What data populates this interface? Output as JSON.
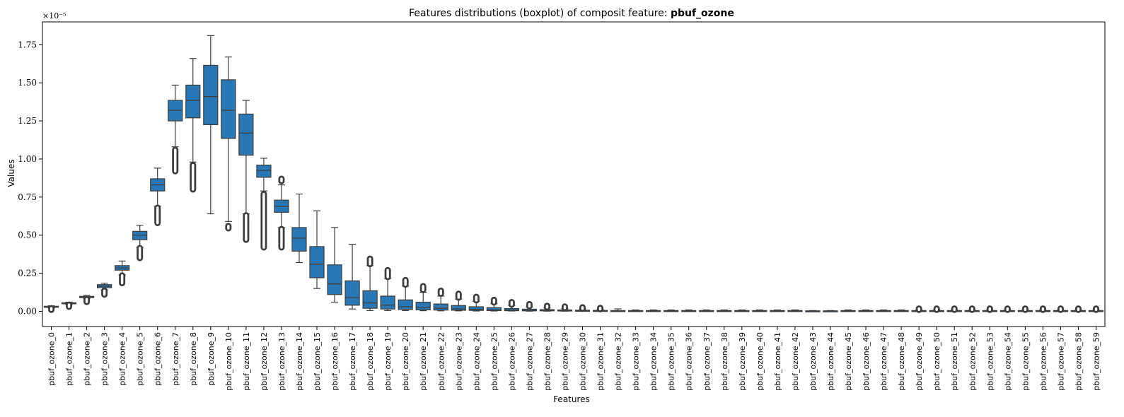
{
  "chart_data": {
    "type": "boxplot",
    "title_prefix": "Features distributions (boxplot) of composit feature: ",
    "title_bold": "pbuf_ozone",
    "xlabel": "Features",
    "ylabel": "Values",
    "y_scale_label": "×10⁻⁵",
    "ylim": [
      -0.1,
      1.9
    ],
    "yticks": [
      0.0,
      0.25,
      0.5,
      0.75,
      1.0,
      1.25,
      1.5,
      1.75
    ],
    "ytick_labels": [
      "0.00",
      "0.25",
      "0.50",
      "0.75",
      "1.00",
      "1.25",
      "1.50",
      "1.75"
    ],
    "box_color": "#2978b5",
    "line_color": "#3d3d3d",
    "categories": [
      "pbuf_ozone_0",
      "pbuf_ozone_1",
      "pbuf_ozone_2",
      "pbuf_ozone_3",
      "pbuf_ozone_4",
      "pbuf_ozone_5",
      "pbuf_ozone_6",
      "pbuf_ozone_7",
      "pbuf_ozone_8",
      "pbuf_ozone_9",
      "pbuf_ozone_10",
      "pbuf_ozone_11",
      "pbuf_ozone_12",
      "pbuf_ozone_13",
      "pbuf_ozone_14",
      "pbuf_ozone_15",
      "pbuf_ozone_16",
      "pbuf_ozone_17",
      "pbuf_ozone_18",
      "pbuf_ozone_19",
      "pbuf_ozone_20",
      "pbuf_ozone_21",
      "pbuf_ozone_22",
      "pbuf_ozone_23",
      "pbuf_ozone_24",
      "pbuf_ozone_25",
      "pbuf_ozone_26",
      "pbuf_ozone_27",
      "pbuf_ozone_28",
      "pbuf_ozone_29",
      "pbuf_ozone_30",
      "pbuf_ozone_31",
      "pbuf_ozone_32",
      "pbuf_ozone_33",
      "pbuf_ozone_34",
      "pbuf_ozone_35",
      "pbuf_ozone_36",
      "pbuf_ozone_37",
      "pbuf_ozone_38",
      "pbuf_ozone_39",
      "pbuf_ozone_40",
      "pbuf_ozone_41",
      "pbuf_ozone_42",
      "pbuf_ozone_43",
      "pbuf_ozone_44",
      "pbuf_ozone_45",
      "pbuf_ozone_46",
      "pbuf_ozone_47",
      "pbuf_ozone_48",
      "pbuf_ozone_49",
      "pbuf_ozone_50",
      "pbuf_ozone_51",
      "pbuf_ozone_52",
      "pbuf_ozone_53",
      "pbuf_ozone_54",
      "pbuf_ozone_55",
      "pbuf_ozone_56",
      "pbuf_ozone_57",
      "pbuf_ozone_58",
      "pbuf_ozone_59"
    ],
    "boxes": [
      {
        "wlo": 0.022,
        "q1": 0.027,
        "med": 0.03,
        "q3": 0.033,
        "whi": 0.036,
        "flo": [
          0.01,
          0.02
        ],
        "fhi": []
      },
      {
        "wlo": 0.045,
        "q1": 0.05,
        "med": 0.053,
        "q3": 0.056,
        "whi": 0.06,
        "flo": [
          0.03,
          0.043
        ],
        "fhi": []
      },
      {
        "wlo": 0.083,
        "q1": 0.09,
        "med": 0.094,
        "q3": 0.098,
        "whi": 0.104,
        "flo": [
          0.062,
          0.08
        ],
        "fhi": []
      },
      {
        "wlo": 0.14,
        "q1": 0.155,
        "med": 0.165,
        "q3": 0.175,
        "whi": 0.185,
        "flo": [
          0.11,
          0.135
        ],
        "fhi": []
      },
      {
        "wlo": 0.24,
        "q1": 0.27,
        "med": 0.285,
        "q3": 0.3,
        "whi": 0.33,
        "flo": [
          0.185,
          0.235
        ],
        "fhi": []
      },
      {
        "wlo": 0.42,
        "q1": 0.47,
        "med": 0.5,
        "q3": 0.525,
        "whi": 0.565,
        "flo": [
          0.35,
          0.415
        ],
        "fhi": []
      },
      {
        "wlo": 0.69,
        "q1": 0.79,
        "med": 0.83,
        "q3": 0.87,
        "whi": 0.94,
        "flo": [
          0.58,
          0.68
        ],
        "fhi": []
      },
      {
        "wlo": 1.08,
        "q1": 1.25,
        "med": 1.32,
        "q3": 1.385,
        "whi": 1.485,
        "flo": [
          0.92,
          1.06
        ],
        "fhi": []
      },
      {
        "wlo": 0.98,
        "q1": 1.27,
        "med": 1.385,
        "q3": 1.485,
        "whi": 1.66,
        "flo": [
          0.8,
          0.96
        ],
        "fhi": []
      },
      {
        "wlo": 0.64,
        "q1": 1.225,
        "med": 1.41,
        "q3": 1.615,
        "whi": 1.81,
        "flo": [],
        "fhi": []
      },
      {
        "wlo": 0.59,
        "q1": 1.135,
        "med": 1.32,
        "q3": 1.52,
        "whi": 1.67,
        "flo": [
          0.545,
          0.56
        ],
        "fhi": []
      },
      {
        "wlo": 0.64,
        "q1": 1.025,
        "med": 1.17,
        "q3": 1.295,
        "whi": 1.385,
        "flo": [
          0.47,
          0.63
        ],
        "fhi": []
      },
      {
        "wlo": 0.79,
        "q1": 0.88,
        "med": 0.925,
        "q3": 0.96,
        "whi": 1.005,
        "flo": [
          0.42,
          0.77
        ],
        "fhi": []
      },
      {
        "wlo": 0.55,
        "q1": 0.65,
        "med": 0.69,
        "q3": 0.73,
        "whi": 0.83,
        "flo": [
          0.42,
          0.54
        ],
        "fhi": [
          0.855,
          0.87
        ]
      },
      {
        "wlo": 0.32,
        "q1": 0.395,
        "med": 0.48,
        "q3": 0.55,
        "whi": 0.77,
        "flo": [],
        "fhi": []
      },
      {
        "wlo": 0.15,
        "q1": 0.22,
        "med": 0.31,
        "q3": 0.425,
        "whi": 0.66,
        "flo": [],
        "fhi": []
      },
      {
        "wlo": 0.06,
        "q1": 0.11,
        "med": 0.18,
        "q3": 0.305,
        "whi": 0.55,
        "flo": [],
        "fhi": []
      },
      {
        "wlo": 0.015,
        "q1": 0.04,
        "med": 0.09,
        "q3": 0.2,
        "whi": 0.44,
        "flo": [],
        "fhi": []
      },
      {
        "wlo": 0.005,
        "q1": 0.02,
        "med": 0.055,
        "q3": 0.135,
        "whi": 0.3,
        "flo": [],
        "fhi": [
          0.31,
          0.345
        ]
      },
      {
        "wlo": 0.005,
        "q1": 0.015,
        "med": 0.04,
        "q3": 0.1,
        "whi": 0.215,
        "flo": [],
        "fhi": [
          0.225,
          0.27
        ]
      },
      {
        "wlo": 0.005,
        "q1": 0.012,
        "med": 0.03,
        "q3": 0.075,
        "whi": 0.165,
        "flo": [],
        "fhi": [
          0.175,
          0.205
        ]
      },
      {
        "wlo": 0.004,
        "q1": 0.01,
        "med": 0.025,
        "q3": 0.06,
        "whi": 0.125,
        "flo": [],
        "fhi": [
          0.14,
          0.165
        ]
      },
      {
        "wlo": 0.003,
        "q1": 0.008,
        "med": 0.02,
        "q3": 0.048,
        "whi": 0.1,
        "flo": [],
        "fhi": [
          0.115,
          0.135
        ]
      },
      {
        "wlo": 0.003,
        "q1": 0.007,
        "med": 0.016,
        "q3": 0.038,
        "whi": 0.08,
        "flo": [],
        "fhi": [
          0.09,
          0.115
        ]
      },
      {
        "wlo": 0.002,
        "q1": 0.006,
        "med": 0.013,
        "q3": 0.03,
        "whi": 0.065,
        "flo": [],
        "fhi": [
          0.072,
          0.095
        ]
      },
      {
        "wlo": 0.002,
        "q1": 0.005,
        "med": 0.01,
        "q3": 0.024,
        "whi": 0.05,
        "flo": [],
        "fhi": [
          0.058,
          0.075
        ]
      },
      {
        "wlo": 0.002,
        "q1": 0.004,
        "med": 0.008,
        "q3": 0.018,
        "whi": 0.038,
        "flo": [],
        "fhi": [
          0.044,
          0.06
        ]
      },
      {
        "wlo": 0.001,
        "q1": 0.003,
        "med": 0.006,
        "q3": 0.014,
        "whi": 0.028,
        "flo": [],
        "fhi": [
          0.033,
          0.047
        ]
      },
      {
        "wlo": 0.001,
        "q1": 0.003,
        "med": 0.005,
        "q3": 0.011,
        "whi": 0.022,
        "flo": [],
        "fhi": [
          0.026,
          0.036
        ]
      },
      {
        "wlo": 0.001,
        "q1": 0.002,
        "med": 0.004,
        "q3": 0.009,
        "whi": 0.018,
        "flo": [],
        "fhi": [
          0.021,
          0.031
        ]
      },
      {
        "wlo": 0.001,
        "q1": 0.002,
        "med": 0.003,
        "q3": 0.007,
        "whi": 0.014,
        "flo": [],
        "fhi": [
          0.017,
          0.026
        ]
      },
      {
        "wlo": 0.0,
        "q1": 0.002,
        "med": 0.003,
        "q3": 0.006,
        "whi": 0.012,
        "flo": [],
        "fhi": [
          0.014,
          0.022
        ]
      },
      {
        "wlo": 0.0,
        "q1": 0.002,
        "med": 0.003,
        "q3": 0.005,
        "whi": 0.016,
        "flo": [],
        "fhi": []
      },
      {
        "wlo": 0.0,
        "q1": 0.002,
        "med": 0.003,
        "q3": 0.005,
        "whi": 0.009,
        "flo": [],
        "fhi": []
      },
      {
        "wlo": 0.0,
        "q1": 0.002,
        "med": 0.003,
        "q3": 0.005,
        "whi": 0.009,
        "flo": [],
        "fhi": []
      },
      {
        "wlo": 0.0,
        "q1": 0.002,
        "med": 0.003,
        "q3": 0.005,
        "whi": 0.009,
        "flo": [],
        "fhi": []
      },
      {
        "wlo": 0.0,
        "q1": 0.002,
        "med": 0.003,
        "q3": 0.005,
        "whi": 0.009,
        "flo": [],
        "fhi": []
      },
      {
        "wlo": 0.0,
        "q1": 0.002,
        "med": 0.003,
        "q3": 0.005,
        "whi": 0.009,
        "flo": [],
        "fhi": []
      },
      {
        "wlo": 0.0,
        "q1": 0.002,
        "med": 0.003,
        "q3": 0.005,
        "whi": 0.009,
        "flo": [],
        "fhi": []
      },
      {
        "wlo": 0.0,
        "q1": 0.002,
        "med": 0.003,
        "q3": 0.005,
        "whi": 0.009,
        "flo": [],
        "fhi": []
      },
      {
        "wlo": 0.0,
        "q1": 0.002,
        "med": 0.003,
        "q3": 0.005,
        "whi": 0.009,
        "flo": [],
        "fhi": []
      },
      {
        "wlo": 0.0,
        "q1": 0.002,
        "med": 0.003,
        "q3": 0.005,
        "whi": 0.009,
        "flo": [],
        "fhi": []
      },
      {
        "wlo": 0.0,
        "q1": 0.002,
        "med": 0.003,
        "q3": 0.005,
        "whi": 0.009,
        "flo": [],
        "fhi": []
      },
      {
        "wlo": 0.0,
        "q1": 0.001,
        "med": 0.002,
        "q3": 0.003,
        "whi": 0.005,
        "flo": [],
        "fhi": []
      },
      {
        "wlo": 0.0,
        "q1": 0.001,
        "med": 0.002,
        "q3": 0.003,
        "whi": 0.005,
        "flo": [],
        "fhi": []
      },
      {
        "wlo": 0.0,
        "q1": 0.002,
        "med": 0.003,
        "q3": 0.005,
        "whi": 0.009,
        "flo": [],
        "fhi": []
      },
      {
        "wlo": 0.0,
        "q1": 0.002,
        "med": 0.003,
        "q3": 0.005,
        "whi": 0.009,
        "flo": [],
        "fhi": []
      },
      {
        "wlo": 0.0,
        "q1": 0.002,
        "med": 0.003,
        "q3": 0.005,
        "whi": 0.009,
        "flo": [],
        "fhi": []
      },
      {
        "wlo": 0.0,
        "q1": 0.002,
        "med": 0.003,
        "q3": 0.005,
        "whi": 0.009,
        "flo": [],
        "fhi": []
      },
      {
        "wlo": 0.0,
        "q1": 0.002,
        "med": 0.003,
        "q3": 0.005,
        "whi": 0.008,
        "flo": [],
        "fhi": [
          0.01,
          0.018
        ]
      },
      {
        "wlo": 0.0,
        "q1": 0.002,
        "med": 0.003,
        "q3": 0.005,
        "whi": 0.008,
        "flo": [],
        "fhi": [
          0.01,
          0.018
        ]
      },
      {
        "wlo": 0.0,
        "q1": 0.002,
        "med": 0.003,
        "q3": 0.005,
        "whi": 0.008,
        "flo": [],
        "fhi": [
          0.01,
          0.018
        ]
      },
      {
        "wlo": 0.0,
        "q1": 0.002,
        "med": 0.003,
        "q3": 0.005,
        "whi": 0.008,
        "flo": [],
        "fhi": [
          0.01,
          0.018
        ]
      },
      {
        "wlo": 0.0,
        "q1": 0.002,
        "med": 0.003,
        "q3": 0.005,
        "whi": 0.008,
        "flo": [],
        "fhi": [
          0.01,
          0.018
        ]
      },
      {
        "wlo": 0.0,
        "q1": 0.002,
        "med": 0.003,
        "q3": 0.005,
        "whi": 0.008,
        "flo": [],
        "fhi": [
          0.01,
          0.018
        ]
      },
      {
        "wlo": 0.0,
        "q1": 0.002,
        "med": 0.003,
        "q3": 0.005,
        "whi": 0.008,
        "flo": [],
        "fhi": [
          0.01,
          0.018
        ]
      },
      {
        "wlo": 0.0,
        "q1": 0.002,
        "med": 0.003,
        "q3": 0.005,
        "whi": 0.008,
        "flo": [],
        "fhi": [
          0.01,
          0.018
        ]
      },
      {
        "wlo": 0.0,
        "q1": 0.002,
        "med": 0.003,
        "q3": 0.005,
        "whi": 0.008,
        "flo": [],
        "fhi": [
          0.01,
          0.018
        ]
      },
      {
        "wlo": 0.0,
        "q1": 0.002,
        "med": 0.003,
        "q3": 0.005,
        "whi": 0.008,
        "flo": [],
        "fhi": [
          0.01,
          0.018
        ]
      },
      {
        "wlo": 0.0,
        "q1": 0.002,
        "med": 0.003,
        "q3": 0.005,
        "whi": 0.008,
        "flo": [],
        "fhi": [
          0.01,
          0.018
        ]
      }
    ]
  }
}
